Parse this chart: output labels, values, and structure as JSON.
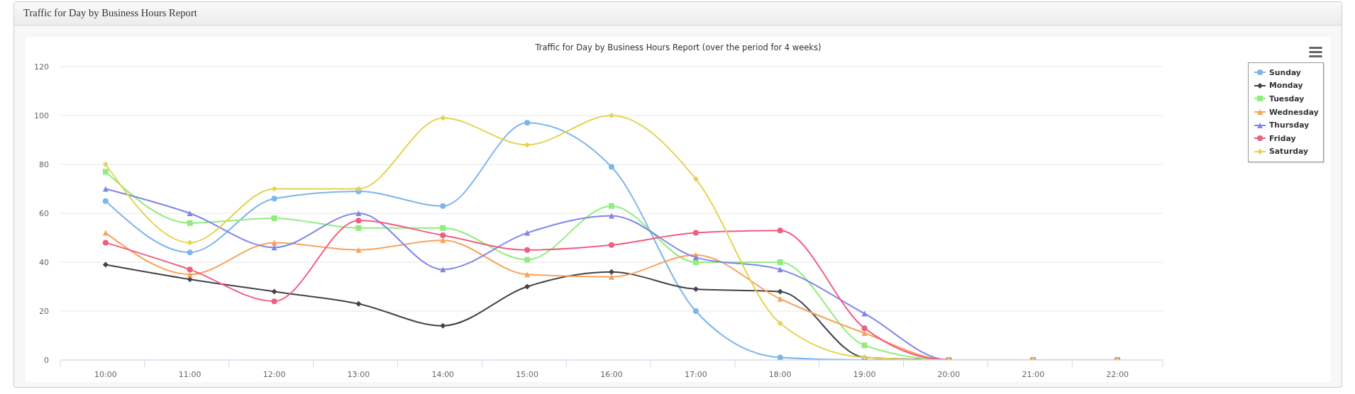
{
  "chart_data": {
    "type": "line",
    "title": "Traffic for Day by Business Hours Report",
    "subtitle": "Traffic for Day by Business Hours Report (over the period for 4 weeks)",
    "categories": [
      "10:00",
      "11:00",
      "12:00",
      "13:00",
      "14:00",
      "15:00",
      "16:00",
      "17:00",
      "18:00",
      "19:00",
      "20:00",
      "21:00",
      "22:00"
    ],
    "series": [
      {
        "name": "Sunday",
        "color": "#7cb5ec",
        "marker": "circle",
        "values": [
          65,
          44,
          66,
          69,
          63,
          97,
          79,
          20,
          1,
          0,
          0,
          0,
          0
        ]
      },
      {
        "name": "Monday",
        "color": "#434348",
        "marker": "diamond",
        "values": [
          39,
          33,
          28,
          23,
          14,
          30,
          36,
          29,
          28,
          1,
          0,
          null,
          null
        ]
      },
      {
        "name": "Tuesday",
        "color": "#90ed7d",
        "marker": "square",
        "values": [
          77,
          56,
          58,
          54,
          54,
          41,
          63,
          40,
          40,
          6,
          0,
          0,
          0
        ]
      },
      {
        "name": "Wednesday",
        "color": "#f7a35c",
        "marker": "triangle",
        "values": [
          52,
          35,
          48,
          45,
          49,
          35,
          34,
          43,
          25,
          11,
          0,
          0,
          0
        ]
      },
      {
        "name": "Thursday",
        "color": "#8085e9",
        "marker": "triangle",
        "values": [
          70,
          60,
          46,
          60,
          37,
          52,
          59,
          42,
          37,
          19,
          0,
          0,
          0
        ]
      },
      {
        "name": "Friday",
        "color": "#f15c80",
        "marker": "circle",
        "values": [
          48,
          37,
          24,
          57,
          51,
          45,
          47,
          52,
          53,
          13,
          0,
          0,
          0
        ]
      },
      {
        "name": "Saturday",
        "color": "#e4d354",
        "marker": "diamond",
        "values": [
          80,
          48,
          70,
          70,
          99,
          88,
          100,
          74,
          15,
          1,
          0,
          0,
          0
        ]
      }
    ],
    "ylim": [
      0,
      120
    ],
    "yticks": [
      0,
      20,
      40,
      60,
      80,
      100,
      120
    ],
    "grid": "y",
    "legend": "top right",
    "line_style": "solid"
  }
}
